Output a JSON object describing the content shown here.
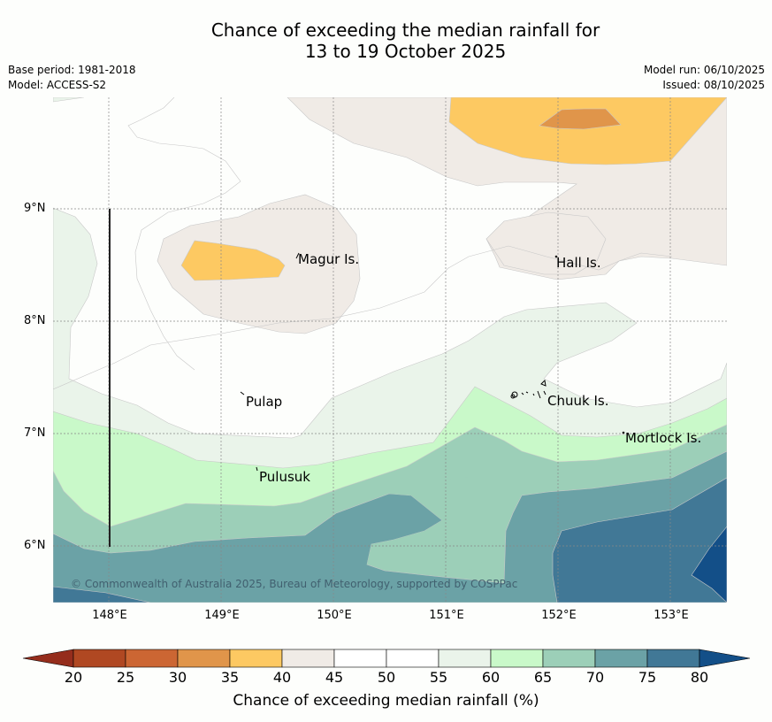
{
  "header": {
    "title_line1": "Chance of exceeding the median rainfall for",
    "title_line2": "13 to 19 October 2025",
    "base_period": "Base period: 1981-2018",
    "model": "Model: ACCESS-S2",
    "model_run": "Model run: 06/10/2025",
    "issued": "Issued: 08/10/2025"
  },
  "map": {
    "lon_range": [
      147.5,
      153.5
    ],
    "lat_range": [
      5.5,
      10.0
    ],
    "lat_ticks": [
      "9°N",
      "8°N",
      "7°N",
      "6°N"
    ],
    "lon_ticks": [
      "148°E",
      "149°E",
      "150°E",
      "151°E",
      "152°E",
      "153°E"
    ],
    "places": [
      {
        "name": "Magur Is."
      },
      {
        "name": "Hall Is."
      },
      {
        "name": "Pulap"
      },
      {
        "name": "Chuuk Is."
      },
      {
        "name": "Mortlock Is."
      },
      {
        "name": "Pulusuk"
      }
    ],
    "copyright": "© Commonwealth of Australia 2025, Bureau of Meteorology, supported by COSPPac"
  },
  "colorbar": {
    "label": "Chance of exceeding median rainfall (%)",
    "ticks": [
      "20",
      "25",
      "30",
      "35",
      "40",
      "45",
      "50",
      "55",
      "60",
      "65",
      "70",
      "75",
      "80"
    ],
    "bins": [
      {
        "range": "<20",
        "color": "#952d1c"
      },
      {
        "range": "20-25",
        "color": "#b04822"
      },
      {
        "range": "25-30",
        "color": "#cc6633"
      },
      {
        "range": "30-35",
        "color": "#e0954a"
      },
      {
        "range": "35-40",
        "color": "#fdc962"
      },
      {
        "range": "40-45",
        "color": "#f0ebe6"
      },
      {
        "range": "45-50",
        "color": "#ffffff"
      },
      {
        "range": "50-55",
        "color": "#ffffff"
      },
      {
        "range": "55-60",
        "color": "#eaf4ea"
      },
      {
        "range": "60-65",
        "color": "#c9f9c9"
      },
      {
        "range": "65-70",
        "color": "#9ccfb8"
      },
      {
        "range": "70-75",
        "color": "#6ba2a6"
      },
      {
        "range": "75-80",
        "color": "#417896"
      },
      {
        "range": ">80",
        "color": "#134f88"
      }
    ]
  }
}
